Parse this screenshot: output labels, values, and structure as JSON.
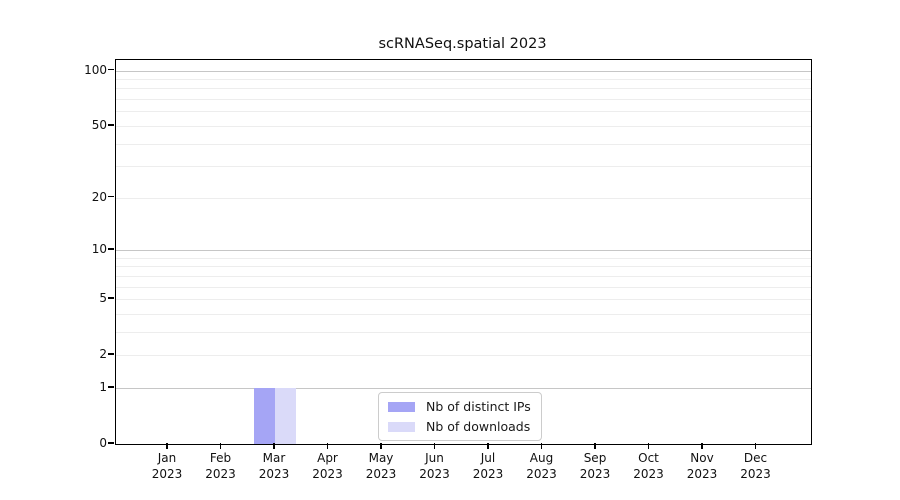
{
  "chart_data": {
    "type": "bar",
    "title": "scRNASeq.spatial 2023",
    "months": [
      "Jan",
      "Feb",
      "Mar",
      "Apr",
      "May",
      "Jun",
      "Jul",
      "Aug",
      "Sep",
      "Oct",
      "Nov",
      "Dec"
    ],
    "year_label": "2023",
    "y_tick_values": [
      100,
      50,
      20,
      10,
      5,
      2,
      1,
      0
    ],
    "y_tick_labels": [
      "100",
      "50",
      "20",
      "10",
      "5",
      "2",
      "1",
      "0"
    ],
    "major_grid_values": [
      1,
      10,
      100
    ],
    "minor_grid_values": [
      2,
      3,
      4,
      5,
      6,
      7,
      8,
      9,
      20,
      30,
      40,
      50,
      60,
      70,
      80,
      90
    ],
    "scale": "log10(1+y)",
    "ylim": [
      0,
      115
    ],
    "grid": "on",
    "legend_position": "bottom-center",
    "xlabel": "",
    "ylabel": "",
    "series": [
      {
        "name": "Nb of distinct IPs",
        "color": "#a5a5f5",
        "values": [
          0,
          0,
          1,
          0,
          0,
          0,
          0,
          0,
          0,
          0,
          0,
          0
        ]
      },
      {
        "name": "Nb of downloads",
        "color": "#dadaf9",
        "values": [
          0,
          0,
          1,
          0,
          0,
          0,
          0,
          0,
          0,
          0,
          0,
          0
        ]
      }
    ]
  }
}
